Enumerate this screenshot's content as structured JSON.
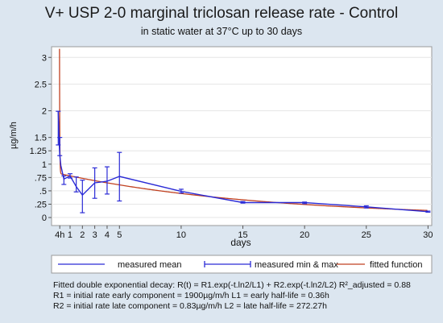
{
  "chart_data": {
    "type": "line",
    "title": "V+ USP 2-0   marginal triclosan release rate - Control",
    "subtitle": "in static water at 37°C up to 30 days",
    "xlabel": "days",
    "ylabel": "µg/m/h",
    "xlim": [
      -0.5,
      30.3
    ],
    "ylim": [
      -0.15,
      3.2
    ],
    "x_ticks": [
      {
        "value": 0.1667,
        "label": "4h"
      },
      {
        "value": 1,
        "label": "1"
      },
      {
        "value": 2,
        "label": "2"
      },
      {
        "value": 3,
        "label": "3"
      },
      {
        "value": 4,
        "label": "4"
      },
      {
        "value": 5,
        "label": "5"
      },
      {
        "value": 10,
        "label": "10"
      },
      {
        "value": 15,
        "label": "15"
      },
      {
        "value": 20,
        "label": "20"
      },
      {
        "value": 25,
        "label": "25"
      },
      {
        "value": 30,
        "label": "30"
      }
    ],
    "y_ticks": [
      {
        "value": 0,
        "label": "0"
      },
      {
        "value": 0.25,
        "label": ".25"
      },
      {
        "value": 0.5,
        "label": ".5"
      },
      {
        "value": 0.75,
        "label": ".75"
      },
      {
        "value": 1,
        "label": "1"
      },
      {
        "value": 1.25,
        "label": "1.25"
      },
      {
        "value": 1.5,
        "label": "1.5"
      },
      {
        "value": 2,
        "label": "2"
      },
      {
        "value": 2.5,
        "label": "2.5"
      },
      {
        "value": 3,
        "label": "3"
      }
    ],
    "grid": true,
    "legend_position": "bottom",
    "series": [
      {
        "name": "measured mean",
        "kind": "line",
        "color": "#2b2bd6",
        "x": [
          0.0417,
          0.0833,
          0.125,
          0.1667,
          0.25,
          0.5,
          1,
          1.5,
          2,
          3,
          4,
          5,
          10,
          15,
          20,
          25,
          30
        ],
        "y": [
          1.99,
          1.72,
          1.36,
          1.17,
          0.98,
          0.72,
          0.78,
          0.58,
          0.42,
          0.65,
          0.68,
          0.77,
          0.49,
          0.28,
          0.28,
          0.2,
          0.11
        ]
      },
      {
        "name": "measured min & max",
        "kind": "errorbar",
        "color": "#2b2bd6",
        "x": [
          0.0417,
          0.1667,
          0.5,
          1,
          1.5,
          2,
          3,
          4,
          5,
          10,
          15,
          20,
          25,
          30
        ],
        "min": [
          1.36,
          1.16,
          0.62,
          0.74,
          0.48,
          0.09,
          0.36,
          0.44,
          0.31,
          0.46,
          0.27,
          0.26,
          0.18,
          0.1
        ],
        "max": [
          1.99,
          1.5,
          0.78,
          0.82,
          0.76,
          0.7,
          0.93,
          0.95,
          1.22,
          0.53,
          0.3,
          0.29,
          0.22,
          0.12
        ]
      },
      {
        "name": "fitted function",
        "kind": "curve",
        "color": "#c04020",
        "R1": 1900,
        "L1_hours": 0.36,
        "R2": 0.83,
        "L2_hours": 272.27
      }
    ]
  },
  "footnotes": [
    "Fitted double exponential decay: R(t) = R1.exp(-t.ln2/L1) + R2.exp(-t.ln2/L2)  R²_adjusted = 0.88",
    "R1 = initial rate early component = 1900µg/m/h  L1 = early half-life = 0.36h",
    "R2 = initial rate late component = 0.83µg/m/h  L2 = late half-life = 272.27h"
  ]
}
